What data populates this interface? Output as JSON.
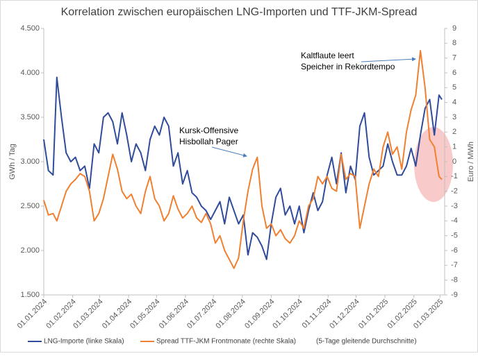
{
  "chart_data": {
    "type": "line",
    "title": "Korrelation zwischen europäischen LNG-Importen und TTF-JKM-Spread",
    "y_label": "GWh / Tag",
    "y2_label": "Euro / MWh",
    "note": "(5-Tage gleitende Durchschnitte)",
    "annotations": [
      {
        "lines": [
          "Kaltflaute leert",
          "Speicher in Rekordtempo"
        ]
      },
      {
        "lines": [
          "Kursk-Offensive",
          "Hisbollah Pager"
        ]
      }
    ],
    "x": [
      "2024-01-01",
      "2024-01-06",
      "2024-01-11",
      "2024-01-15",
      "2024-01-20",
      "2024-01-25",
      "2024-01-30",
      "2024-02-04",
      "2024-02-09",
      "2024-02-14",
      "2024-02-19",
      "2024-02-24",
      "2024-02-29",
      "2024-03-05",
      "2024-03-10",
      "2024-03-15",
      "2024-03-20",
      "2024-03-25",
      "2024-03-30",
      "2024-04-04",
      "2024-04-09",
      "2024-04-14",
      "2024-04-19",
      "2024-04-24",
      "2024-04-29",
      "2024-05-04",
      "2024-05-09",
      "2024-05-14",
      "2024-05-19",
      "2024-05-24",
      "2024-05-29",
      "2024-06-03",
      "2024-06-08",
      "2024-06-13",
      "2024-06-18",
      "2024-06-23",
      "2024-06-28",
      "2024-07-03",
      "2024-07-08",
      "2024-07-13",
      "2024-07-18",
      "2024-07-23",
      "2024-07-28",
      "2024-08-02",
      "2024-08-07",
      "2024-08-12",
      "2024-08-17",
      "2024-08-22",
      "2024-08-27",
      "2024-09-01",
      "2024-09-06",
      "2024-09-11",
      "2024-09-16",
      "2024-09-21",
      "2024-09-26",
      "2024-10-01",
      "2024-10-06",
      "2024-10-11",
      "2024-10-16",
      "2024-10-21",
      "2024-10-26",
      "2024-10-31",
      "2024-11-05",
      "2024-11-10",
      "2024-11-15",
      "2024-11-20",
      "2024-11-25",
      "2024-11-30",
      "2024-12-05",
      "2024-12-10",
      "2024-12-15",
      "2024-12-20",
      "2024-12-25",
      "2024-12-30",
      "2025-01-04",
      "2025-01-09",
      "2025-01-14",
      "2025-01-19",
      "2025-01-24",
      "2025-01-29",
      "2025-02-03",
      "2025-02-08",
      "2025-02-13",
      "2025-02-18",
      "2025-02-23",
      "2025-02-28",
      "2025-03-03"
    ],
    "series": [
      {
        "name": "LNG-Importe (linke Skala)",
        "color": "#2f4b9a",
        "axis": "y",
        "values": [
          3250,
          2900,
          2850,
          3950,
          3500,
          3100,
          3000,
          3050,
          2900,
          2950,
          2700,
          3200,
          3100,
          3500,
          3550,
          3450,
          3200,
          3550,
          3300,
          3000,
          3200,
          3100,
          2900,
          3250,
          3400,
          3300,
          3500,
          3400,
          2950,
          3100,
          2750,
          2900,
          2650,
          2600,
          2500,
          2450,
          2350,
          2450,
          2550,
          2300,
          2600,
          2450,
          2300,
          2400,
          1950,
          2200,
          2150,
          2050,
          1900,
          2300,
          2600,
          2700,
          2400,
          2500,
          2300,
          2500,
          2200,
          2450,
          2650,
          2450,
          2550,
          2850,
          3050,
          2750,
          3100,
          2650,
          2950,
          2800,
          3400,
          3550,
          3050,
          2850,
          2900,
          2950,
          3200,
          3000,
          2850,
          2850,
          2950,
          3150,
          2950,
          3300,
          3600,
          3700,
          3300,
          3750,
          3700
        ]
      },
      {
        "name": "Spread TTF-JKM Frontmonate (rechte Skala)",
        "color": "#f08030",
        "axis": "y2",
        "values": [
          -2.6,
          -3.6,
          -3.5,
          -4,
          -3,
          -2,
          -1.5,
          -1.2,
          -0.8,
          -1,
          -2,
          -4,
          -3.5,
          -2.5,
          -1,
          0.5,
          -0.5,
          -2,
          -2.5,
          -2.2,
          -3,
          -3.5,
          -2,
          -1,
          -2.5,
          -3,
          -4,
          -3.5,
          -2.3,
          -3.2,
          -3.8,
          -3.5,
          -3,
          -3.8,
          -4.1,
          -3.5,
          -4.2,
          -5.5,
          -5,
          -6,
          -6.6,
          -7.2,
          -6.5,
          -4,
          -2,
          -0.5,
          0.3,
          -3,
          -4.5,
          -4.2,
          -5,
          -4.6,
          -5.2,
          -5.5,
          -5,
          -4,
          -4.5,
          -3,
          -2.5,
          -1,
          -1.5,
          -1,
          -1.8,
          -2,
          0.5,
          -1.2,
          -0.8,
          -1,
          -4.5,
          -3,
          -1.5,
          -0.5,
          -1,
          1,
          2,
          0.5,
          1,
          -0.5,
          2,
          3.5,
          4.5,
          7.5,
          5,
          1.5,
          1,
          -1,
          -1.2
        ]
      }
    ],
    "xlim": [
      "2024-01-01",
      "2025-03-06"
    ],
    "xticks": [
      {
        "value": "2024-01-01",
        "label": "01.01.2024"
      },
      {
        "value": "2024-02-01",
        "label": "01.02.2024"
      },
      {
        "value": "2024-03-01",
        "label": "01.03.2024"
      },
      {
        "value": "2024-04-01",
        "label": "01.04.2024"
      },
      {
        "value": "2024-05-01",
        "label": "01.05.2024"
      },
      {
        "value": "2024-06-01",
        "label": "01.06.2024"
      },
      {
        "value": "2024-07-01",
        "label": "01.07.2024"
      },
      {
        "value": "2024-08-01",
        "label": "01.08.2024"
      },
      {
        "value": "2024-09-01",
        "label": "01.09.2024"
      },
      {
        "value": "2024-10-01",
        "label": "01.10.2024"
      },
      {
        "value": "2024-11-01",
        "label": "01.11.2024"
      },
      {
        "value": "2024-12-01",
        "label": "01.12.2024"
      },
      {
        "value": "2025-01-01",
        "label": "01.01.2025"
      },
      {
        "value": "2025-02-01",
        "label": "01.02.2025"
      },
      {
        "value": "2025-03-01",
        "label": "01.03.2025"
      }
    ],
    "ylim": [
      1500,
      4500
    ],
    "yticks": [
      {
        "value": 1500,
        "label": "1.500"
      },
      {
        "value": 2000,
        "label": "2.000"
      },
      {
        "value": 2500,
        "label": "2.500"
      },
      {
        "value": 3000,
        "label": "3.000"
      },
      {
        "value": 3500,
        "label": "3.500"
      },
      {
        "value": 4000,
        "label": "4.000"
      },
      {
        "value": 4500,
        "label": "4.500"
      }
    ],
    "y2lim": [
      -9,
      9
    ],
    "y2ticks": [
      -9,
      -8,
      -7,
      -6,
      -5,
      -4,
      -3,
      -2,
      -1,
      0,
      1,
      2,
      3,
      4,
      5,
      6,
      7,
      8,
      9
    ],
    "grid": false
  }
}
